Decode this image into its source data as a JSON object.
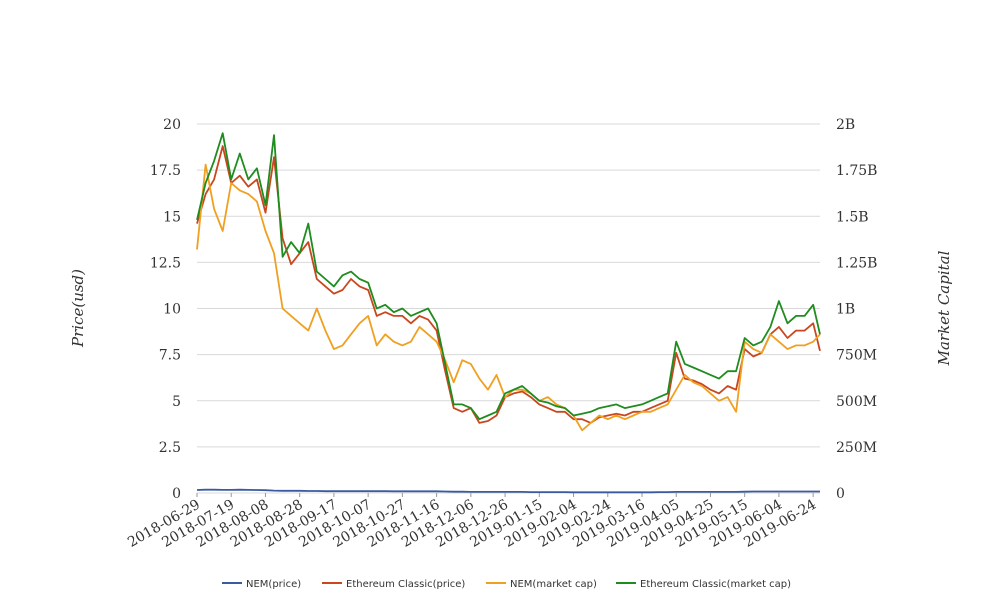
{
  "chart_data": {
    "type": "line",
    "title": "",
    "ylabel": "Price(usd)",
    "y2label": "Market Capital",
    "ylim": [
      0,
      20
    ],
    "y2lim": [
      0,
      2000000000
    ],
    "yticks": [
      "0",
      "2.5",
      "5",
      "7.5",
      "10",
      "12.5",
      "15",
      "17.5",
      "20"
    ],
    "y2ticks": [
      "0",
      "250M",
      "500M",
      "750M",
      "1B",
      "1.25B",
      "1.5B",
      "1.75B",
      "2B"
    ],
    "xticks": [
      "2018-06-29",
      "2018-07-19",
      "2018-08-08",
      "2018-08-28",
      "2018-09-17",
      "2018-10-07",
      "2018-10-27",
      "2018-11-16",
      "2018-12-06",
      "2018-12-26",
      "2019-01-15",
      "2019-02-04",
      "2019-02-24",
      "2019-03-16",
      "2019-04-05",
      "2019-04-25",
      "2019-05-15",
      "2019-06-04",
      "2019-06-24"
    ],
    "x": [
      "2018-06-29",
      "2018-07-04",
      "2018-07-09",
      "2018-07-14",
      "2018-07-19",
      "2018-07-24",
      "2018-07-29",
      "2018-08-03",
      "2018-08-08",
      "2018-08-13",
      "2018-08-18",
      "2018-08-23",
      "2018-08-28",
      "2018-09-02",
      "2018-09-07",
      "2018-09-12",
      "2018-09-17",
      "2018-09-22",
      "2018-09-27",
      "2018-10-02",
      "2018-10-07",
      "2018-10-12",
      "2018-10-17",
      "2018-10-22",
      "2018-10-27",
      "2018-11-01",
      "2018-11-06",
      "2018-11-11",
      "2018-11-16",
      "2018-11-21",
      "2018-11-26",
      "2018-12-01",
      "2018-12-06",
      "2018-12-11",
      "2018-12-16",
      "2018-12-21",
      "2018-12-26",
      "2018-12-31",
      "2019-01-05",
      "2019-01-10",
      "2019-01-15",
      "2019-01-20",
      "2019-01-25",
      "2019-01-30",
      "2019-02-04",
      "2019-02-09",
      "2019-02-14",
      "2019-02-19",
      "2019-02-24",
      "2019-03-01",
      "2019-03-06",
      "2019-03-11",
      "2019-03-16",
      "2019-03-21",
      "2019-03-26",
      "2019-03-31",
      "2019-04-05",
      "2019-04-10",
      "2019-04-15",
      "2019-04-20",
      "2019-04-25",
      "2019-04-30",
      "2019-05-05",
      "2019-05-10",
      "2019-05-15",
      "2019-05-20",
      "2019-05-25",
      "2019-05-30",
      "2019-06-04",
      "2019-06-09",
      "2019-06-14",
      "2019-06-19",
      "2019-06-24",
      "2019-06-28"
    ],
    "series": [
      {
        "name": "NEM(price)",
        "color": "#3a5ba0",
        "axis": "left",
        "values": [
          0.16,
          0.18,
          0.18,
          0.17,
          0.17,
          0.18,
          0.17,
          0.16,
          0.15,
          0.13,
          0.12,
          0.12,
          0.12,
          0.11,
          0.11,
          0.1,
          0.1,
          0.1,
          0.1,
          0.1,
          0.1,
          0.1,
          0.1,
          0.09,
          0.09,
          0.09,
          0.09,
          0.09,
          0.09,
          0.08,
          0.07,
          0.07,
          0.06,
          0.06,
          0.06,
          0.06,
          0.06,
          0.06,
          0.06,
          0.05,
          0.05,
          0.05,
          0.05,
          0.05,
          0.04,
          0.04,
          0.04,
          0.04,
          0.04,
          0.04,
          0.04,
          0.04,
          0.04,
          0.04,
          0.05,
          0.05,
          0.06,
          0.06,
          0.06,
          0.06,
          0.06,
          0.06,
          0.06,
          0.06,
          0.07,
          0.08,
          0.08,
          0.08,
          0.08,
          0.08,
          0.08,
          0.08,
          0.08,
          0.08
        ]
      },
      {
        "name": "Ethereum Classic(price)",
        "color": "#c8471f",
        "axis": "left",
        "values": [
          14.6,
          16.2,
          17.0,
          18.8,
          16.8,
          17.2,
          16.6,
          17.0,
          15.2,
          18.2,
          13.8,
          12.4,
          13.0,
          13.6,
          11.6,
          11.2,
          10.8,
          11.0,
          11.6,
          11.2,
          11.0,
          9.6,
          9.8,
          9.6,
          9.6,
          9.2,
          9.6,
          9.4,
          8.8,
          6.6,
          4.6,
          4.4,
          4.6,
          3.8,
          3.9,
          4.2,
          5.2,
          5.4,
          5.5,
          5.2,
          4.8,
          4.6,
          4.4,
          4.4,
          4.0,
          4.0,
          3.8,
          4.1,
          4.2,
          4.3,
          4.2,
          4.4,
          4.4,
          4.6,
          4.8,
          5.0,
          7.6,
          6.2,
          6.1,
          5.9,
          5.6,
          5.4,
          5.8,
          5.6,
          7.8,
          7.4,
          7.6,
          8.6,
          9.0,
          8.4,
          8.8,
          8.8,
          9.2,
          7.7
        ]
      },
      {
        "name": "NEM(market cap)",
        "color": "#f0a020",
        "axis": "right",
        "values": [
          1320000000,
          1780000000,
          1540000000,
          1420000000,
          1680000000,
          1640000000,
          1620000000,
          1580000000,
          1420000000,
          1300000000,
          1000000000,
          960000000,
          920000000,
          880000000,
          1000000000,
          880000000,
          780000000,
          800000000,
          860000000,
          920000000,
          960000000,
          800000000,
          860000000,
          820000000,
          800000000,
          820000000,
          900000000,
          860000000,
          820000000,
          720000000,
          600000000,
          720000000,
          700000000,
          620000000,
          560000000,
          640000000,
          520000000,
          560000000,
          560000000,
          540000000,
          500000000,
          520000000,
          480000000,
          460000000,
          420000000,
          340000000,
          380000000,
          420000000,
          400000000,
          420000000,
          400000000,
          420000000,
          440000000,
          440000000,
          460000000,
          480000000,
          560000000,
          640000000,
          600000000,
          580000000,
          540000000,
          500000000,
          520000000,
          440000000,
          820000000,
          780000000,
          760000000,
          860000000,
          820000000,
          780000000,
          800000000,
          800000000,
          820000000,
          860000000
        ]
      },
      {
        "name": "Ethereum Classic(market cap)",
        "color": "#1e8c1e",
        "axis": "right",
        "values": [
          1480000000,
          1680000000,
          1800000000,
          1950000000,
          1700000000,
          1840000000,
          1700000000,
          1760000000,
          1560000000,
          1940000000,
          1280000000,
          1360000000,
          1300000000,
          1460000000,
          1200000000,
          1160000000,
          1120000000,
          1180000000,
          1200000000,
          1160000000,
          1140000000,
          1000000000,
          1020000000,
          980000000,
          1000000000,
          960000000,
          980000000,
          1000000000,
          920000000,
          700000000,
          480000000,
          480000000,
          460000000,
          400000000,
          420000000,
          440000000,
          540000000,
          560000000,
          580000000,
          540000000,
          500000000,
          490000000,
          470000000,
          460000000,
          420000000,
          430000000,
          440000000,
          460000000,
          470000000,
          480000000,
          460000000,
          470000000,
          480000000,
          500000000,
          520000000,
          540000000,
          820000000,
          700000000,
          680000000,
          660000000,
          640000000,
          620000000,
          660000000,
          660000000,
          840000000,
          800000000,
          820000000,
          900000000,
          1040000000,
          920000000,
          960000000,
          960000000,
          1020000000,
          860000000
        ]
      }
    ],
    "legend_position": "bottom",
    "grid": true
  }
}
